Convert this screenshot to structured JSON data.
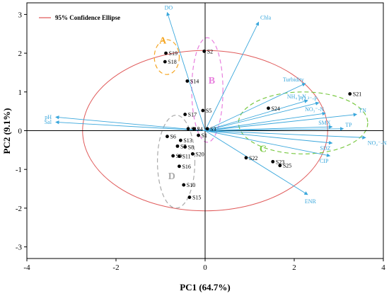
{
  "chart_data": {
    "type": "scatter",
    "subtype": "pca-biplot",
    "xlabel": "PC1 (64.7%)",
    "ylabel": "PC2 (9.1%)",
    "xlim": [
      -4,
      4
    ],
    "ylim": [
      -3.3,
      3.3
    ],
    "xticks": [
      -4,
      -2,
      0,
      2,
      4
    ],
    "yticks": [
      -3,
      -2,
      -1,
      0,
      1,
      2,
      3
    ],
    "legend": {
      "label": "95% Confidence Ellipse",
      "position": "top-left"
    },
    "ellipse_color": "#e05a5a",
    "vector_color": "#3aa7dc",
    "points": [
      {
        "label": "S1",
        "x": -0.15,
        "y": -0.12
      },
      {
        "label": "S2",
        "x": -0.02,
        "y": 2.05
      },
      {
        "label": "S3",
        "x": 0.05,
        "y": 0.05
      },
      {
        "label": "S4",
        "x": -0.25,
        "y": 0.05
      },
      {
        "label": "S5",
        "x": -0.05,
        "y": 0.52
      },
      {
        "label": "S6",
        "x": -0.85,
        "y": -0.15
      },
      {
        "label": "S7",
        "x": -0.62,
        "y": -0.4
      },
      {
        "label": "S8",
        "x": -0.45,
        "y": -0.42
      },
      {
        "label": "S9",
        "x": -0.72,
        "y": -0.65
      },
      {
        "label": "S10",
        "x": -0.48,
        "y": -1.4
      },
      {
        "label": "S11",
        "x": -0.58,
        "y": -0.66
      },
      {
        "label": "S12",
        "x": -0.38,
        "y": 0.05
      },
      {
        "label": "S13",
        "x": -0.55,
        "y": -0.25
      },
      {
        "label": "S14",
        "x": -0.4,
        "y": 1.28
      },
      {
        "label": "S15",
        "x": -0.35,
        "y": -1.72
      },
      {
        "label": "S16",
        "x": -0.58,
        "y": -0.92
      },
      {
        "label": "S17",
        "x": -0.45,
        "y": 0.42
      },
      {
        "label": "S18",
        "x": -0.9,
        "y": 1.78
      },
      {
        "label": "S19",
        "x": -0.88,
        "y": 2.0
      },
      {
        "label": "S20",
        "x": -0.28,
        "y": -0.6
      },
      {
        "label": "S21",
        "x": 3.25,
        "y": 0.95
      },
      {
        "label": "S22",
        "x": 0.92,
        "y": -0.7
      },
      {
        "label": "S23",
        "x": 1.52,
        "y": -0.8
      },
      {
        "label": "S24",
        "x": 1.42,
        "y": 0.58
      },
      {
        "label": "S25",
        "x": 1.68,
        "y": -0.9
      }
    ],
    "vectors": [
      {
        "label": "DO",
        "x": -0.85,
        "y": 3.05
      },
      {
        "label": "Chla",
        "x": 1.2,
        "y": 2.8
      },
      {
        "label": "pH",
        "x": -3.35,
        "y": 0.35
      },
      {
        "label": "Sal",
        "x": -3.35,
        "y": 0.22
      },
      {
        "label": "Turbidity",
        "x": 2.25,
        "y": 1.22
      },
      {
        "label": "NH₄⁺-N",
        "x": 2.3,
        "y": 0.78
      },
      {
        "label": "PO₄³⁻-P",
        "x": 2.55,
        "y": 0.72
      },
      {
        "label": "NO₃⁻-N",
        "x": 2.7,
        "y": 0.45
      },
      {
        "label": "TN",
        "x": 3.4,
        "y": 0.42
      },
      {
        "label": "TP",
        "x": 3.1,
        "y": 0.05
      },
      {
        "label": "SMX",
        "x": 2.85,
        "y": 0.1
      },
      {
        "label": "NO₂⁻-N",
        "x": 3.6,
        "y": -0.18
      },
      {
        "label": "SDZ",
        "x": 2.85,
        "y": -0.32
      },
      {
        "label": "CIP",
        "x": 2.8,
        "y": -0.65
      },
      {
        "label": "ENR",
        "x": 2.3,
        "y": -1.65
      }
    ],
    "confidence_ellipse": {
      "cx": 0.0,
      "cy": 0.0,
      "rx": 2.75,
      "ry": 2.07
    },
    "groups": [
      {
        "label": "A",
        "color": "#f5a623",
        "cx": -0.86,
        "cy": 1.9,
        "rx": 0.28,
        "ry": 0.45,
        "label_x": -0.95,
        "label_y": 2.25
      },
      {
        "label": "B",
        "color": "#e87fde",
        "cx": 0.05,
        "cy": 1.05,
        "rx": 0.35,
        "ry": 1.35,
        "label_x": 0.15,
        "label_y": 1.22
      },
      {
        "label": "C",
        "color": "#7ac943",
        "cx": 2.2,
        "cy": 0.2,
        "rx": 1.45,
        "ry": 0.8,
        "label_x": 1.3,
        "label_y": -0.55
      },
      {
        "label": "D",
        "color": "#aaaaaa",
        "cx": -0.65,
        "cy": -0.8,
        "rx": 0.42,
        "ry": 1.2,
        "label_x": -0.75,
        "label_y": -1.25
      }
    ]
  }
}
